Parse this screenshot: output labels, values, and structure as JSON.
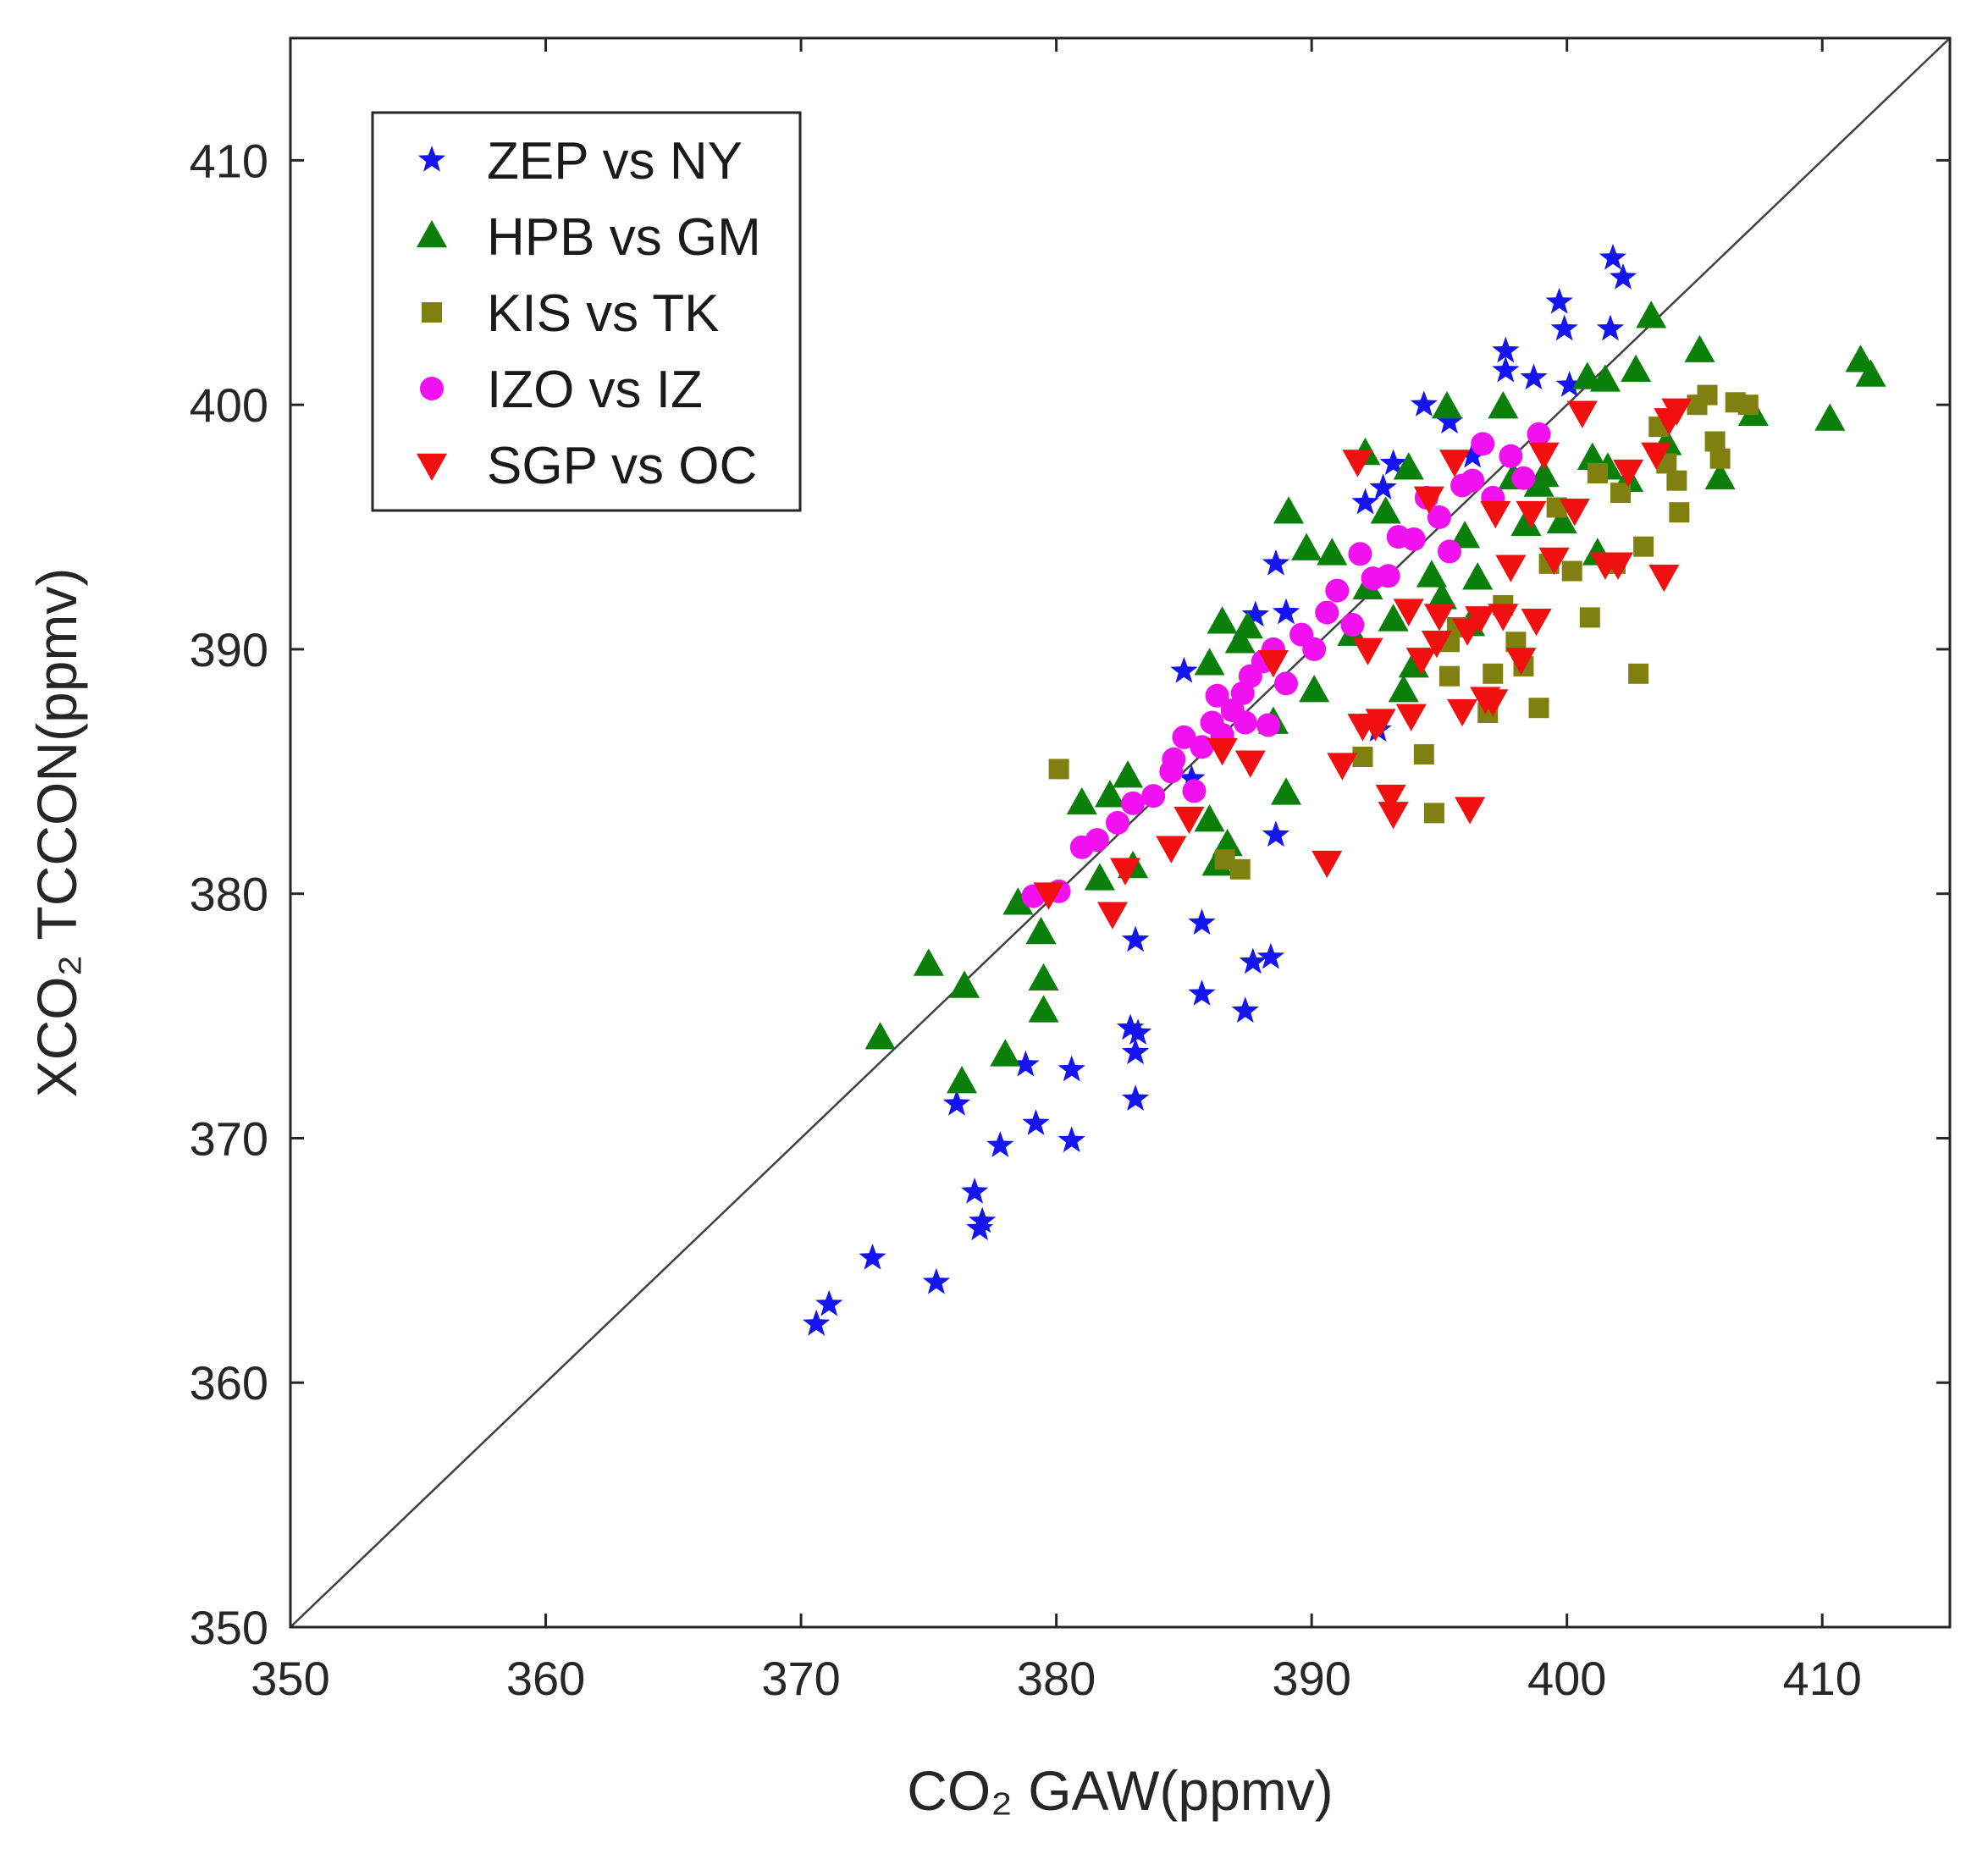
{
  "chart_data": {
    "type": "scatter",
    "title": "",
    "xlabel": "CO₂ GAW(ppmv)",
    "ylabel": "XCO₂ TCCON(ppmv)",
    "xlim": [
      350,
      415
    ],
    "ylim": [
      350,
      415
    ],
    "xticks": [
      "350",
      "360",
      "370",
      "380",
      "390",
      "400",
      "410"
    ],
    "yticks": [
      "350",
      "360",
      "370",
      "380",
      "390",
      "400",
      "410"
    ],
    "reference_line": "1:1",
    "legend_position": "top-left",
    "series": [
      {
        "name": "ZEP vs NY",
        "marker": "star",
        "color": "#1414f0",
        "points": [
          [
            370.6,
            362.4
          ],
          [
            371.1,
            363.2
          ],
          [
            372.8,
            365.1
          ],
          [
            375.3,
            364.1
          ],
          [
            376.1,
            371.4
          ],
          [
            376.8,
            367.8
          ],
          [
            377.1,
            366.6
          ],
          [
            377.0,
            366.3
          ],
          [
            377.8,
            369.7
          ],
          [
            378.8,
            373.0
          ],
          [
            379.2,
            370.6
          ],
          [
            380.6,
            372.8
          ],
          [
            380.6,
            369.9
          ],
          [
            382.9,
            374.5
          ],
          [
            383.2,
            374.3
          ],
          [
            383.1,
            373.5
          ],
          [
            383.1,
            371.6
          ],
          [
            383.1,
            378.1
          ],
          [
            385.7,
            378.8
          ],
          [
            385.7,
            375.9
          ],
          [
            387.4,
            375.2
          ],
          [
            387.7,
            377.2
          ],
          [
            388.4,
            377.4
          ],
          [
            388.6,
            382.4
          ],
          [
            385.0,
            389.1
          ],
          [
            387.8,
            391.4
          ],
          [
            388.6,
            393.5
          ],
          [
            389.0,
            391.5
          ],
          [
            392.1,
            396.0
          ],
          [
            392.8,
            396.6
          ],
          [
            393.2,
            397.6
          ],
          [
            394.4,
            400.0
          ],
          [
            395.4,
            399.3
          ],
          [
            396.3,
            397.9
          ],
          [
            397.6,
            402.2
          ],
          [
            397.6,
            401.4
          ],
          [
            398.7,
            401.1
          ],
          [
            399.7,
            404.2
          ],
          [
            399.9,
            403.1
          ],
          [
            400.1,
            400.8
          ],
          [
            401.7,
            403.1
          ],
          [
            401.8,
            406.0
          ],
          [
            402.2,
            405.2
          ],
          [
            392.6,
            386.7
          ],
          [
            385.3,
            384.7
          ]
        ]
      },
      {
        "name": "HPB vs GM",
        "marker": "triangle-up",
        "color": "#0a800a",
        "points": [
          [
            373.1,
            374.1
          ],
          [
            375.0,
            377.1
          ],
          [
            376.3,
            372.3
          ],
          [
            376.4,
            376.2
          ],
          [
            378.0,
            373.4
          ],
          [
            378.5,
            379.6
          ],
          [
            379.4,
            378.4
          ],
          [
            379.5,
            376.5
          ],
          [
            379.5,
            375.2
          ],
          [
            381.0,
            383.7
          ],
          [
            381.7,
            380.6
          ],
          [
            382.1,
            384.0
          ],
          [
            382.8,
            384.8
          ],
          [
            383.0,
            381.1
          ],
          [
            386.0,
            383.0
          ],
          [
            386.3,
            381.2
          ],
          [
            386.7,
            382.0
          ],
          [
            386.0,
            389.4
          ],
          [
            386.5,
            391.1
          ],
          [
            387.2,
            390.3
          ],
          [
            387.5,
            390.9
          ],
          [
            388.5,
            387.0
          ],
          [
            389.0,
            384.1
          ],
          [
            389.1,
            395.6
          ],
          [
            389.8,
            394.1
          ],
          [
            390.1,
            388.3
          ],
          [
            390.8,
            393.9
          ],
          [
            391.6,
            390.6
          ],
          [
            392.1,
            398.0
          ],
          [
            392.2,
            392.5
          ],
          [
            392.9,
            395.6
          ],
          [
            393.2,
            391.2
          ],
          [
            393.6,
            388.3
          ],
          [
            394.0,
            389.3
          ],
          [
            393.8,
            397.4
          ],
          [
            394.7,
            393.0
          ],
          [
            395.1,
            392.1
          ],
          [
            395.3,
            399.9
          ],
          [
            396.0,
            394.6
          ],
          [
            396.2,
            391.0
          ],
          [
            396.5,
            392.9
          ],
          [
            397.5,
            399.9
          ],
          [
            397.9,
            397.0
          ],
          [
            398.4,
            395.1
          ],
          [
            398.9,
            396.7
          ],
          [
            399.1,
            397.1
          ],
          [
            399.8,
            395.2
          ],
          [
            400.8,
            401.1
          ],
          [
            401.0,
            397.8
          ],
          [
            401.2,
            393.9
          ],
          [
            401.5,
            401.0
          ],
          [
            401.6,
            397.4
          ],
          [
            402.4,
            396.9
          ],
          [
            402.7,
            401.4
          ],
          [
            403.3,
            403.6
          ],
          [
            403.9,
            398.4
          ],
          [
            405.2,
            402.2
          ],
          [
            406.0,
            397.0
          ],
          [
            407.3,
            399.6
          ],
          [
            410.3,
            399.4
          ],
          [
            411.5,
            401.8
          ],
          [
            411.9,
            401.2
          ]
        ]
      },
      {
        "name": "KIS vs TK",
        "marker": "square",
        "color": "#808010",
        "points": [
          [
            380.1,
            385.1
          ],
          [
            386.6,
            381.4
          ],
          [
            387.2,
            381.0
          ],
          [
            392.0,
            385.6
          ],
          [
            394.4,
            385.7
          ],
          [
            394.8,
            383.3
          ],
          [
            395.4,
            388.9
          ],
          [
            395.4,
            390.3
          ],
          [
            395.7,
            390.9
          ],
          [
            396.9,
            387.4
          ],
          [
            397.1,
            389.0
          ],
          [
            397.5,
            391.8
          ],
          [
            398.0,
            390.3
          ],
          [
            398.3,
            389.3
          ],
          [
            398.9,
            387.6
          ],
          [
            399.3,
            393.5
          ],
          [
            399.6,
            395.8
          ],
          [
            400.2,
            393.2
          ],
          [
            400.9,
            391.3
          ],
          [
            401.2,
            397.2
          ],
          [
            401.9,
            393.5
          ],
          [
            402.1,
            396.4
          ],
          [
            402.8,
            389.0
          ],
          [
            403.0,
            394.2
          ],
          [
            403.6,
            399.1
          ],
          [
            403.9,
            397.6
          ],
          [
            404.3,
            396.9
          ],
          [
            404.4,
            395.6
          ],
          [
            405.1,
            400.0
          ],
          [
            405.5,
            400.4
          ],
          [
            405.8,
            398.5
          ],
          [
            406.0,
            397.8
          ],
          [
            406.6,
            400.1
          ],
          [
            407.1,
            400.0
          ]
        ]
      },
      {
        "name": "IZO vs IZ",
        "marker": "circle",
        "color": "#f010f0",
        "points": [
          [
            379.1,
            379.9
          ],
          [
            380.1,
            380.1
          ],
          [
            381.0,
            381.9
          ],
          [
            381.6,
            382.2
          ],
          [
            382.4,
            382.9
          ],
          [
            383.0,
            383.7
          ],
          [
            383.8,
            384.0
          ],
          [
            384.5,
            385.0
          ],
          [
            384.6,
            385.5
          ],
          [
            385.0,
            386.4
          ],
          [
            385.4,
            384.2
          ],
          [
            385.7,
            386.0
          ],
          [
            386.1,
            387.0
          ],
          [
            386.3,
            388.1
          ],
          [
            386.5,
            386.4
          ],
          [
            386.9,
            387.5
          ],
          [
            387.3,
            388.2
          ],
          [
            387.6,
            388.9
          ],
          [
            388.1,
            389.5
          ],
          [
            388.5,
            390.0
          ],
          [
            389.0,
            388.6
          ],
          [
            389.6,
            390.6
          ],
          [
            390.1,
            390.0
          ],
          [
            390.6,
            391.5
          ],
          [
            391.0,
            392.4
          ],
          [
            391.6,
            391.0
          ],
          [
            391.9,
            393.9
          ],
          [
            392.4,
            392.9
          ],
          [
            393.0,
            393.0
          ],
          [
            393.4,
            394.6
          ],
          [
            394.0,
            394.5
          ],
          [
            394.5,
            396.2
          ],
          [
            395.0,
            395.4
          ],
          [
            395.4,
            394.0
          ],
          [
            395.9,
            396.7
          ],
          [
            396.3,
            396.9
          ],
          [
            396.7,
            398.4
          ],
          [
            397.1,
            396.2
          ],
          [
            397.8,
            397.9
          ],
          [
            398.3,
            397.0
          ],
          [
            398.9,
            398.8
          ],
          [
            386.5,
            386.5
          ],
          [
            388.3,
            386.9
          ],
          [
            387.4,
            387.0
          ]
        ]
      },
      {
        "name": "SGP vs OC",
        "marker": "triangle-down",
        "color": "#f01010",
        "points": [
          [
            379.7,
            380.0
          ],
          [
            382.2,
            379.2
          ],
          [
            382.7,
            381.0
          ],
          [
            384.5,
            381.9
          ],
          [
            385.2,
            383.1
          ],
          [
            386.5,
            385.9
          ],
          [
            387.6,
            385.4
          ],
          [
            388.5,
            389.5
          ],
          [
            390.6,
            381.3
          ],
          [
            391.2,
            385.3
          ],
          [
            392.0,
            386.9
          ],
          [
            392.5,
            386.9
          ],
          [
            392.7,
            387.1
          ],
          [
            393.1,
            384.0
          ],
          [
            393.2,
            383.3
          ],
          [
            393.9,
            387.3
          ],
          [
            394.3,
            389.6
          ],
          [
            395.0,
            391.4
          ],
          [
            395.9,
            387.5
          ],
          [
            396.1,
            390.8
          ],
          [
            396.2,
            383.5
          ],
          [
            396.8,
            388.0
          ],
          [
            397.1,
            387.9
          ],
          [
            397.5,
            391.4
          ],
          [
            397.8,
            393.4
          ],
          [
            398.2,
            389.6
          ],
          [
            398.8,
            391.2
          ],
          [
            399.5,
            393.7
          ],
          [
            400.3,
            395.7
          ],
          [
            400.6,
            399.7
          ],
          [
            401.5,
            393.5
          ],
          [
            402.0,
            393.5
          ],
          [
            402.4,
            397.3
          ],
          [
            403.5,
            398.0
          ],
          [
            403.8,
            393.0
          ],
          [
            404.0,
            399.4
          ],
          [
            404.3,
            399.8
          ],
          [
            391.8,
            397.7
          ],
          [
            394.6,
            396.2
          ],
          [
            395.6,
            397.7
          ],
          [
            397.2,
            395.6
          ],
          [
            398.6,
            395.6
          ],
          [
            399.1,
            398.0
          ],
          [
            392.2,
            390.0
          ],
          [
            393.8,
            391.6
          ],
          [
            394.9,
            390.3
          ],
          [
            396.6,
            391.3
          ]
        ]
      }
    ]
  }
}
